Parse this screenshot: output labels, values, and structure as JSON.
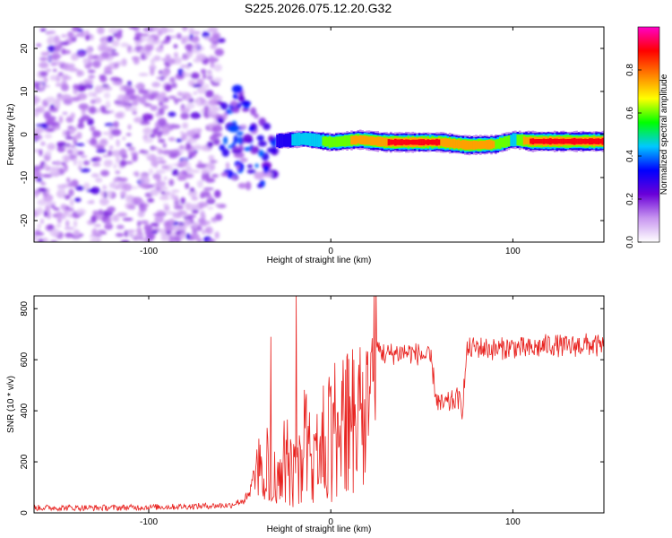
{
  "figure_title": "S225.2026.075.12.20.G32",
  "chart_data": [
    {
      "type": "heatmap",
      "title": "S225.2026.075.12.20.G32",
      "xlabel": "Height of straight line (km)",
      "ylabel": "Frequency (Hz)",
      "xlim": [
        -163,
        150
      ],
      "ylim": [
        -25,
        25
      ],
      "x_ticks": [
        -100,
        0,
        100
      ],
      "x_tick_labels": [
        "-100",
        "0",
        "100"
      ],
      "y_ticks": [
        20,
        10,
        0,
        -10,
        -20
      ],
      "y_tick_labels": [
        "20",
        "10",
        "0",
        "-10",
        "-20"
      ],
      "colorbar": {
        "label": "Normalized spectral amplitude",
        "range": [
          0,
          1
        ],
        "ticks": [
          0.0,
          0.2,
          0.4,
          0.6,
          0.8
        ],
        "tick_labels": [
          "0.0",
          "0.2",
          "0.4",
          "0.6",
          "0.8"
        ],
        "colors": [
          "#ffffff",
          "#c896f0",
          "#6a00d8",
          "#0000ff",
          "#00c8ff",
          "#00ff00",
          "#ffff00",
          "#ff8000",
          "#ff0000",
          "#ff00c8"
        ]
      },
      "noise_region": {
        "x": [
          -163,
          -60
        ],
        "y": [
          -25,
          25
        ],
        "amplitude": 0.15
      },
      "transition_region": {
        "x": [
          -60,
          -30
        ],
        "y": [
          -12,
          16
        ],
        "amplitude": 0.3
      },
      "signal_band": [
        {
          "x": -30,
          "y": -1.5,
          "amp": 0.35
        },
        {
          "x": -15,
          "y": -1.0,
          "amp": 0.45
        },
        {
          "x": 0,
          "y": -1.8,
          "amp": 0.6
        },
        {
          "x": 15,
          "y": -1.2,
          "amp": 0.75
        },
        {
          "x": 30,
          "y": -1.8,
          "amp": 0.85
        },
        {
          "x": 60,
          "y": -1.8,
          "amp": 0.85
        },
        {
          "x": 75,
          "y": -2.5,
          "amp": 0.8
        },
        {
          "x": 90,
          "y": -2.3,
          "amp": 0.7
        },
        {
          "x": 100,
          "y": -1.2,
          "amp": 0.5
        },
        {
          "x": 110,
          "y": -1.6,
          "amp": 0.9
        },
        {
          "x": 150,
          "y": -1.6,
          "amp": 0.9
        }
      ]
    },
    {
      "type": "line",
      "xlabel": "Height of straight line (km)",
      "ylabel": "SNR (10 * v/v)",
      "xlim": [
        -163,
        150
      ],
      "ylim": [
        0,
        850
      ],
      "x_ticks": [
        -100,
        0,
        100
      ],
      "x_tick_labels": [
        "-100",
        "0",
        "100"
      ],
      "y_ticks": [
        0,
        200,
        400,
        600,
        800
      ],
      "y_tick_labels": [
        "0",
        "200",
        "400",
        "600",
        "800"
      ],
      "series": [
        {
          "name": "SNR",
          "color": "#e8211e",
          "x": [
            -163,
            -120,
            -80,
            -55,
            -45,
            -40,
            -35,
            -30,
            -25,
            -20,
            -15,
            -10,
            -5,
            0,
            5,
            10,
            15,
            20,
            25,
            30,
            40,
            50,
            55,
            58,
            60,
            65,
            70,
            72,
            75,
            80,
            90,
            100,
            110,
            120,
            130,
            140,
            150
          ],
          "values": [
            20,
            20,
            25,
            30,
            60,
            200,
            250,
            150,
            280,
            180,
            350,
            300,
            400,
            420,
            430,
            470,
            460,
            480,
            650,
            620,
            630,
            620,
            600,
            450,
            420,
            430,
            450,
            400,
            640,
            650,
            640,
            650,
            640,
            660,
            650,
            660,
            650
          ],
          "annotations": [
            {
              "x": -33,
              "y": 690
            },
            {
              "x": -19,
              "y": 850
            }
          ]
        }
      ]
    }
  ]
}
